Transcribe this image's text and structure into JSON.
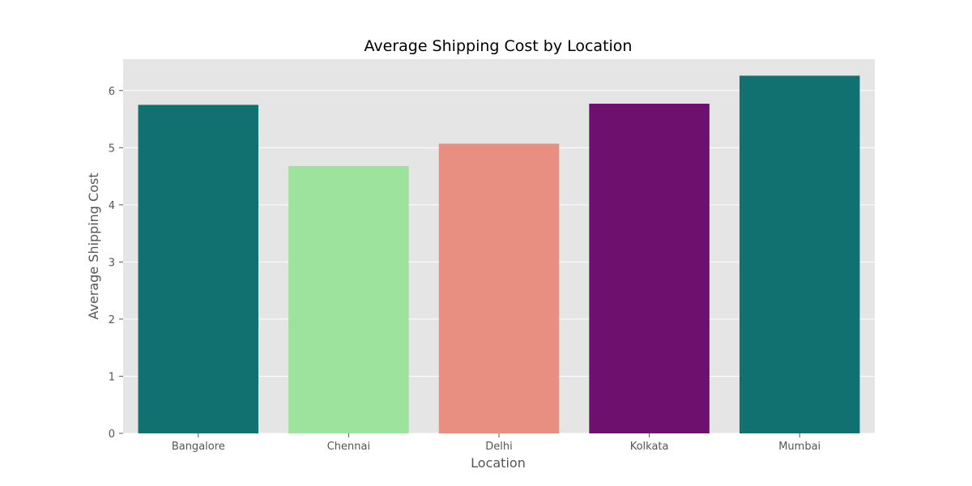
{
  "chart_data": {
    "type": "bar",
    "title": "Average Shipping Cost by Location",
    "xlabel": "Location",
    "ylabel": "Average Shipping Cost",
    "categories": [
      "Bangalore",
      "Chennai",
      "Delhi",
      "Kolkata",
      "Mumbai"
    ],
    "values": [
      5.75,
      4.68,
      5.07,
      5.77,
      6.26
    ],
    "colors": [
      "#117070",
      "#9de29d",
      "#e88f82",
      "#6e106e",
      "#117070"
    ],
    "ylim": [
      0,
      6.55
    ],
    "yticks": [
      0,
      1,
      2,
      3,
      4,
      5,
      6
    ],
    "grid": true,
    "background": "#e5e5e5",
    "legend": "none"
  }
}
